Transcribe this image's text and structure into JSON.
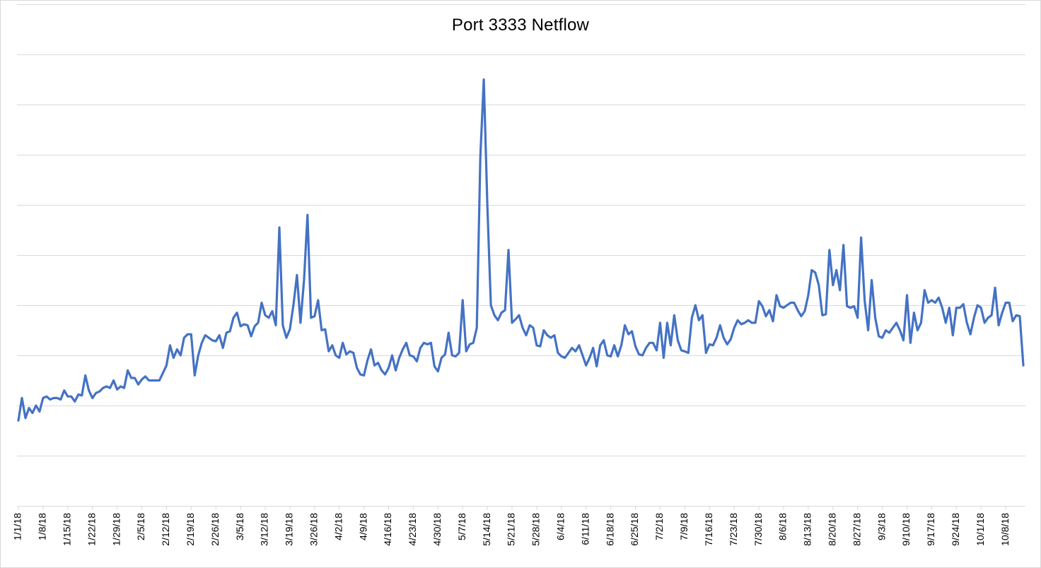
{
  "chart_data": {
    "type": "line",
    "title": "Port 3333 Netflow",
    "xlabel": "",
    "ylabel": "",
    "ylim": [
      0,
      10
    ],
    "grid": true,
    "legend": "none",
    "line_color": "#4472c4",
    "gridline_color": "#d9d9d9",
    "x_tick_labels": [
      "1/1/18",
      "1/8/18",
      "1/15/18",
      "1/22/18",
      "1/29/18",
      "2/5/18",
      "2/12/18",
      "2/19/18",
      "2/26/18",
      "3/5/18",
      "3/12/18",
      "3/19/18",
      "3/26/18",
      "4/2/18",
      "4/9/18",
      "4/16/18",
      "4/23/18",
      "4/30/18",
      "5/7/18",
      "5/14/18",
      "5/21/18",
      "5/28/18",
      "6/4/18",
      "6/11/18",
      "6/18/18",
      "6/25/18",
      "7/2/18",
      "7/9/18",
      "7/16/18",
      "7/23/18",
      "7/30/18",
      "8/6/18",
      "8/13/18",
      "8/20/18",
      "8/27/18",
      "9/3/18",
      "9/10/18",
      "9/17/18",
      "9/24/18",
      "10/1/18",
      "10/8/18"
    ],
    "series": [
      {
        "values": [
          1.7,
          2.15,
          1.75,
          1.95,
          1.85,
          2.0,
          1.88,
          2.15,
          2.18,
          2.12,
          2.15,
          2.15,
          2.12,
          2.3,
          2.18,
          2.18,
          2.08,
          2.22,
          2.2,
          2.6,
          2.3,
          2.15,
          2.25,
          2.28,
          2.35,
          2.38,
          2.35,
          2.5,
          2.32,
          2.38,
          2.35,
          2.7,
          2.55,
          2.55,
          2.42,
          2.52,
          2.58,
          2.5,
          2.5,
          2.5,
          2.5,
          2.65,
          2.8,
          3.2,
          2.95,
          3.12,
          3.0,
          3.35,
          3.42,
          3.42,
          2.6,
          3.0,
          3.25,
          3.4,
          3.35,
          3.3,
          3.28,
          3.4,
          3.15,
          3.45,
          3.48,
          3.75,
          3.85,
          3.58,
          3.62,
          3.6,
          3.38,
          3.58,
          3.65,
          4.05,
          3.8,
          3.75,
          3.88,
          3.6,
          5.55,
          3.6,
          3.35,
          3.52,
          4.0,
          4.6,
          3.65,
          4.5,
          5.8,
          3.75,
          3.78,
          4.1,
          3.5,
          3.52,
          3.08,
          3.2,
          3.0,
          2.95,
          3.25,
          3.02,
          3.08,
          3.05,
          2.75,
          2.62,
          2.6,
          2.9,
          3.12,
          2.8,
          2.85,
          2.7,
          2.62,
          2.75,
          3.0,
          2.7,
          2.95,
          3.12,
          3.25,
          3.0,
          2.98,
          2.88,
          3.15,
          3.25,
          3.22,
          3.25,
          2.78,
          2.68,
          2.95,
          3.02,
          3.45,
          3.0,
          2.98,
          3.05,
          4.1,
          3.08,
          3.22,
          3.25,
          3.55,
          6.95,
          8.5,
          6.0,
          4.0,
          3.8,
          3.7,
          3.85,
          3.9,
          5.1,
          3.65,
          3.72,
          3.8,
          3.55,
          3.4,
          3.6,
          3.55,
          3.2,
          3.18,
          3.5,
          3.4,
          3.35,
          3.4,
          3.05,
          2.98,
          2.95,
          3.05,
          3.15,
          3.08,
          3.2,
          3.0,
          2.8,
          2.95,
          3.15,
          2.78,
          3.2,
          3.3,
          3.0,
          2.98,
          3.2,
          2.98,
          3.2,
          3.6,
          3.42,
          3.48,
          3.18,
          3.02,
          3.0,
          3.15,
          3.25,
          3.25,
          3.1,
          3.65,
          2.95,
          3.65,
          3.2,
          3.8,
          3.3,
          3.1,
          3.08,
          3.05,
          3.75,
          4.0,
          3.7,
          3.8,
          3.05,
          3.22,
          3.2,
          3.35,
          3.6,
          3.35,
          3.22,
          3.32,
          3.55,
          3.7,
          3.62,
          3.65,
          3.7,
          3.65,
          3.65,
          4.08,
          3.98,
          3.78,
          3.9,
          3.68,
          4.2,
          3.98,
          3.95,
          4.0,
          4.05,
          4.05,
          3.9,
          3.78,
          3.88,
          4.2,
          4.7,
          4.65,
          4.4,
          3.8,
          3.82,
          5.1,
          4.4,
          4.7,
          4.3,
          5.2,
          3.98,
          3.95,
          3.98,
          3.75,
          5.35,
          4.1,
          3.5,
          4.5,
          3.75,
          3.38,
          3.35,
          3.5,
          3.45,
          3.55,
          3.65,
          3.5,
          3.3,
          4.2,
          3.25,
          3.85,
          3.5,
          3.65,
          4.3,
          4.05,
          4.1,
          4.05,
          4.15,
          3.95,
          3.65,
          3.95,
          3.4,
          3.95,
          3.95,
          4.02,
          3.65,
          3.42,
          3.75,
          4.0,
          3.95,
          3.65,
          3.75,
          3.8,
          4.35,
          3.6,
          3.85,
          4.05,
          4.05,
          3.68,
          3.8,
          3.78,
          2.8
        ]
      }
    ]
  }
}
